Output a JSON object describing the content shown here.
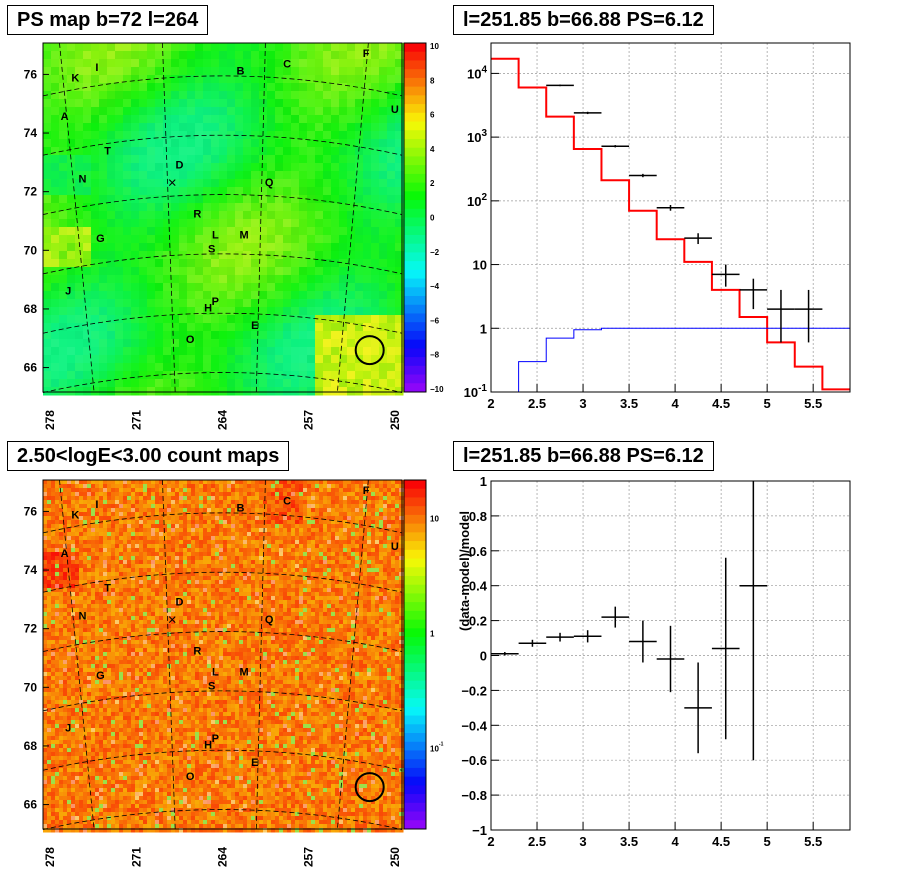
{
  "chart_data": [
    {
      "type": "heatmap",
      "title": "PS map b=72 l=264",
      "xlabel": "",
      "ylabel": "",
      "x_ticks": [
        "278",
        "271",
        "264",
        "257",
        "250"
      ],
      "y_ticks": [
        "66",
        "68",
        "70",
        "72",
        "74",
        "76"
      ],
      "colorbar_ticks": [
        "10",
        "8",
        "6",
        "4",
        "2",
        "0",
        "−2",
        "−4",
        "−6",
        "−8",
        "−10"
      ],
      "zlim": [
        -10,
        10
      ],
      "source_labels": [
        "K",
        "I",
        "B",
        "C",
        "F",
        "A",
        "U",
        "T",
        "D",
        "N",
        "Q",
        "R",
        "G",
        "L",
        "M",
        "S",
        "J",
        "P",
        "H",
        "O",
        "E"
      ],
      "grid": true
    },
    {
      "type": "line",
      "title": "l=251.85 b=66.88 PS=6.12",
      "xlabel": "",
      "ylabel": "",
      "y_scale": "log",
      "xlim": [
        2,
        5.9
      ],
      "ylim": [
        0.1,
        30000
      ],
      "x_ticks": [
        "2",
        "2.5",
        "3",
        "3.5",
        "4",
        "4.5",
        "5",
        "5.5"
      ],
      "y_ticks": [
        "10^-1",
        "1",
        "10",
        "10^2",
        "10^3",
        "10^4"
      ],
      "bin_edges": [
        2.0,
        2.3,
        2.6,
        2.9,
        3.2,
        3.5,
        3.8,
        4.1,
        4.4,
        4.7,
        5.0,
        5.3,
        5.6,
        5.9
      ],
      "series": [
        {
          "color": "#ff0000",
          "style": "step",
          "values": [
            17000,
            6000,
            2100,
            650,
            210,
            70,
            25,
            11,
            4,
            1.5,
            0.6,
            0.25,
            0.11
          ]
        },
        {
          "color": "#0000ff",
          "style": "step",
          "values": [
            0.1,
            0.3,
            0.7,
            0.95,
            1.0,
            1.0,
            1.0,
            1.0,
            1.0,
            1.0,
            1.0,
            1.0,
            1.0
          ]
        },
        {
          "color": "#000000",
          "style": "errorbar",
          "points": [
            {
              "x": 2.75,
              "y": 6500,
              "xerr": 0.15,
              "ylo": 6300,
              "yhi": 6700
            },
            {
              "x": 3.05,
              "y": 2400,
              "xerr": 0.15,
              "ylo": 2300,
              "yhi": 2500
            },
            {
              "x": 3.35,
              "y": 720,
              "xerr": 0.15,
              "ylo": 690,
              "yhi": 750
            },
            {
              "x": 3.65,
              "y": 250,
              "xerr": 0.15,
              "ylo": 235,
              "yhi": 265
            },
            {
              "x": 3.95,
              "y": 78,
              "xerr": 0.15,
              "ylo": 70,
              "yhi": 86
            },
            {
              "x": 4.25,
              "y": 26,
              "xerr": 0.15,
              "ylo": 21,
              "yhi": 31
            },
            {
              "x": 4.55,
              "y": 7,
              "xerr": 0.15,
              "ylo": 4.5,
              "yhi": 10
            },
            {
              "x": 4.85,
              "y": 4,
              "xerr": 0.15,
              "ylo": 2,
              "yhi": 6
            },
            {
              "x": 5.15,
              "y": 2,
              "xerr": 0.15,
              "ylo": 0.6,
              "yhi": 4
            },
            {
              "x": 5.45,
              "y": 2,
              "xerr": 0.15,
              "ylo": 0.6,
              "yhi": 4
            }
          ]
        }
      ],
      "grid": true
    },
    {
      "type": "heatmap",
      "title": "2.50<logE<3.00 count maps",
      "xlabel": "",
      "ylabel": "",
      "x_ticks": [
        "278",
        "271",
        "264",
        "257",
        "250"
      ],
      "y_ticks": [
        "66",
        "68",
        "70",
        "72",
        "74",
        "76"
      ],
      "colorbar_ticks": [
        "10",
        "1",
        "10^-1"
      ],
      "z_scale": "log",
      "source_labels": [
        "K",
        "I",
        "B",
        "C",
        "F",
        "A",
        "U",
        "T",
        "D",
        "N",
        "Q",
        "R",
        "G",
        "L",
        "M",
        "S",
        "J",
        "P",
        "H",
        "O",
        "E"
      ],
      "grid": true
    },
    {
      "type": "scatter",
      "title": "l=251.85 b=66.88 PS=6.12",
      "xlabel": "",
      "ylabel": "(data-model)/model",
      "xlim": [
        2,
        5.9
      ],
      "ylim": [
        -1,
        1
      ],
      "x_ticks": [
        "2",
        "2.5",
        "3",
        "3.5",
        "4",
        "4.5",
        "5",
        "5.5"
      ],
      "y_ticks": [
        "1",
        "0.8",
        "0.6",
        "0.4",
        "0.2",
        "0",
        "−0.2",
        "−0.4",
        "−0.6",
        "−0.8",
        "−1"
      ],
      "points": [
        {
          "x": 2.15,
          "y": 0.01,
          "xerr": 0.15,
          "yerr": 0.01
        },
        {
          "x": 2.45,
          "y": 0.07,
          "xerr": 0.15,
          "yerr": 0.02
        },
        {
          "x": 2.75,
          "y": 0.105,
          "xerr": 0.15,
          "yerr": 0.025
        },
        {
          "x": 3.05,
          "y": 0.11,
          "xerr": 0.15,
          "yerr": 0.035
        },
        {
          "x": 3.35,
          "y": 0.22,
          "xerr": 0.15,
          "yerr": 0.06
        },
        {
          "x": 3.65,
          "y": 0.08,
          "xerr": 0.15,
          "yerr": 0.12
        },
        {
          "x": 3.95,
          "y": -0.02,
          "xerr": 0.15,
          "yerr": 0.19
        },
        {
          "x": 4.25,
          "y": -0.3,
          "xerr": 0.15,
          "yerr": 0.26
        },
        {
          "x": 4.55,
          "y": 0.04,
          "xerr": 0.15,
          "yerr": 0.52
        },
        {
          "x": 4.85,
          "y": 0.4,
          "xerr": 0.15,
          "yerr": 1.0
        }
      ],
      "grid": true
    }
  ]
}
